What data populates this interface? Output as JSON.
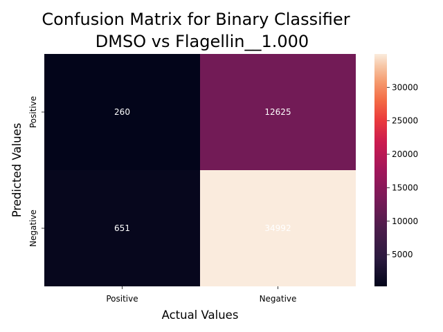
{
  "chart_data": {
    "type": "heatmap",
    "title_line1": "Confusion Matrix for Binary Classifier",
    "title_line2": "DMSO vs Flagellin__1.000",
    "xlabel": "Actual Values",
    "ylabel": "Predicted Values",
    "x_categories": [
      "Positive",
      "Negative"
    ],
    "y_categories": [
      "Positive",
      "Negative"
    ],
    "values": [
      [
        260,
        12625
      ],
      [
        651,
        34992
      ]
    ],
    "value_labels": [
      [
        "260",
        "12625"
      ],
      [
        "651",
        "34992"
      ]
    ],
    "colorbar": {
      "range": [
        260,
        34992
      ],
      "ticks": [
        5000,
        10000,
        15000,
        20000,
        25000,
        30000
      ],
      "tick_labels": [
        "5000",
        "10000",
        "15000",
        "20000",
        "25000",
        "30000"
      ],
      "colormap": "rocket"
    },
    "colors": {
      "low": "#03051a",
      "mid": "#a1165a",
      "high": "#faebdd"
    }
  }
}
